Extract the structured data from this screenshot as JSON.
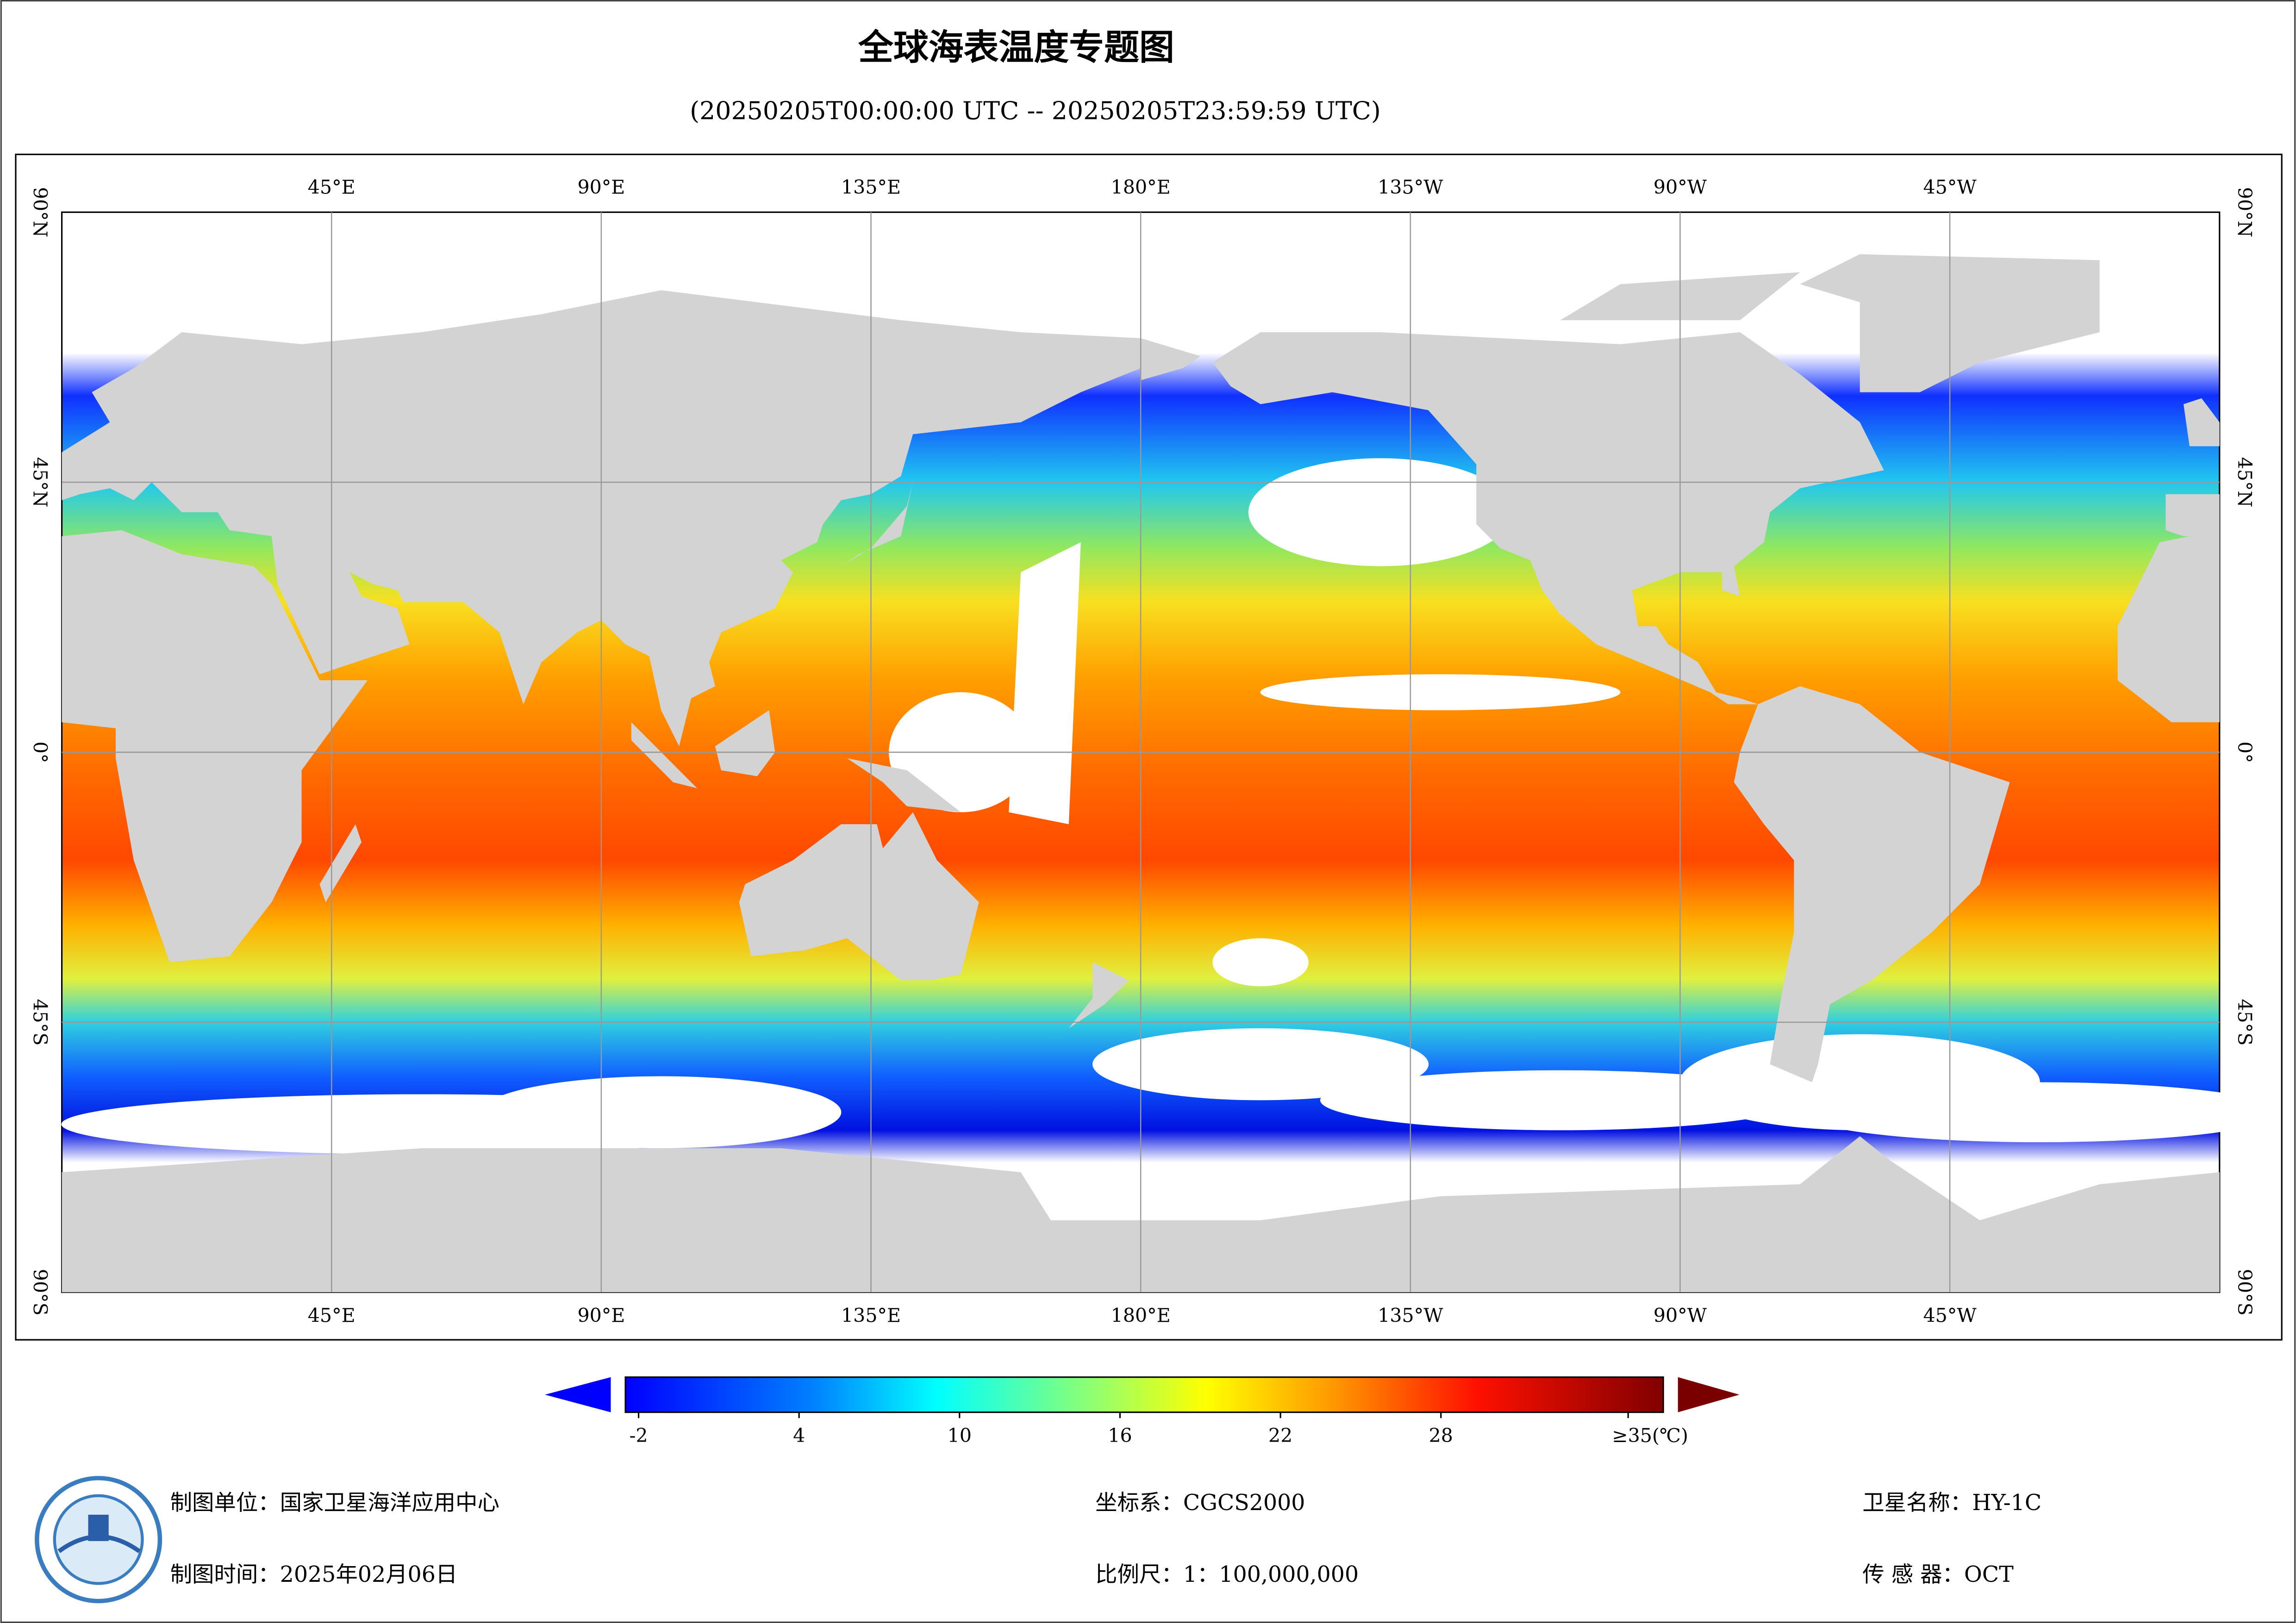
{
  "header": {
    "title": "全球海表温度专题图",
    "subtitle": "(20250205T00:00:00 UTC -- 20250205T23:59:59 UTC)"
  },
  "map": {
    "lon_labels": [
      "45°E",
      "90°E",
      "135°E",
      "180°E",
      "135°W",
      "90°W",
      "45°W"
    ],
    "lat_labels": [
      "90°N",
      "45°N",
      "0°",
      "45°S",
      "90°S"
    ]
  },
  "colorbar": {
    "ticks": [
      -2,
      4,
      10,
      16,
      22,
      28,
      {
        "value": 35,
        "label": "≥35(℃)"
      }
    ]
  },
  "footer": {
    "agency": "制图单位：国家卫星海洋应用中心",
    "date": "制图时间：2025年02月06日",
    "crs": "坐标系：CGCS2000",
    "scale": "比例尺：1：100,000,000",
    "satellite": "卫星名称：HY-1C",
    "sensor": "传 感 器：OCT"
  }
}
